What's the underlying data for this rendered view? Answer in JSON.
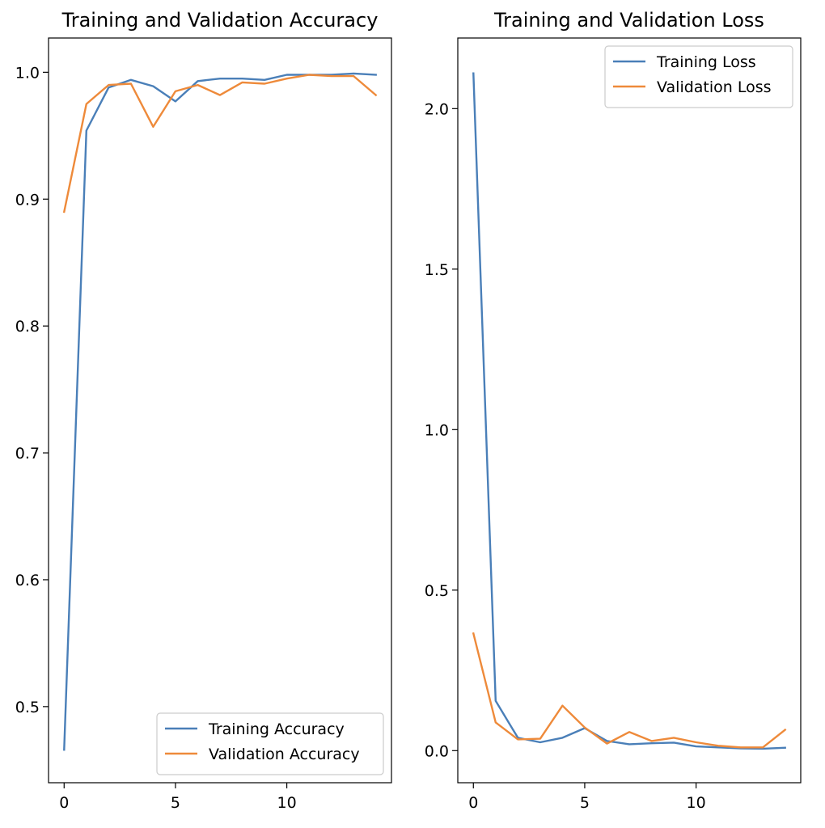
{
  "chart_data": [
    {
      "type": "line",
      "title": "Training and Validation Accuracy",
      "xlabel": "",
      "ylabel": "",
      "x": [
        0,
        1,
        2,
        3,
        4,
        5,
        6,
        7,
        8,
        9,
        10,
        11,
        12,
        13,
        14
      ],
      "xlim": [
        -0.7,
        14.7
      ],
      "ylim": [
        0.44,
        1.027
      ],
      "xticks": [
        0,
        5,
        10
      ],
      "yticks": [
        0.5,
        0.6,
        0.7,
        0.8,
        0.9,
        1.0
      ],
      "ytick_labels": [
        "0.5",
        "0.6",
        "0.7",
        "0.8",
        "0.9",
        "1.0"
      ],
      "grid": false,
      "legend_position": "lower right",
      "series": [
        {
          "name": "Training Accuracy",
          "color": "#4a7fb8",
          "values": [
            0.466,
            0.954,
            0.988,
            0.994,
            0.989,
            0.977,
            0.993,
            0.995,
            0.995,
            0.994,
            0.998,
            0.998,
            0.998,
            0.999,
            0.998
          ]
        },
        {
          "name": "Validation Accuracy",
          "color": "#ee8a3a",
          "values": [
            0.89,
            0.975,
            0.99,
            0.991,
            0.957,
            0.985,
            0.99,
            0.982,
            0.992,
            0.991,
            0.995,
            0.998,
            0.997,
            0.997,
            0.982
          ]
        }
      ]
    },
    {
      "type": "line",
      "title": "Training and Validation Loss",
      "xlabel": "",
      "ylabel": "",
      "x": [
        0,
        1,
        2,
        3,
        4,
        5,
        6,
        7,
        8,
        9,
        10,
        11,
        12,
        13,
        14
      ],
      "xlim": [
        -0.7,
        14.7
      ],
      "ylim": [
        -0.1,
        2.22
      ],
      "xticks": [
        0,
        5,
        10
      ],
      "yticks": [
        0.0,
        0.5,
        1.0,
        1.5,
        2.0
      ],
      "ytick_labels": [
        "0.0",
        "0.5",
        "1.0",
        "1.5",
        "2.0"
      ],
      "grid": false,
      "legend_position": "upper right",
      "series": [
        {
          "name": "Training Loss",
          "color": "#4a7fb8",
          "values": [
            2.11,
            0.155,
            0.04,
            0.026,
            0.04,
            0.07,
            0.03,
            0.02,
            0.023,
            0.025,
            0.013,
            0.01,
            0.007,
            0.006,
            0.009
          ]
        },
        {
          "name": "Validation Loss",
          "color": "#ee8a3a",
          "values": [
            0.365,
            0.088,
            0.035,
            0.037,
            0.14,
            0.072,
            0.022,
            0.058,
            0.03,
            0.04,
            0.026,
            0.015,
            0.01,
            0.01,
            0.065
          ]
        }
      ]
    }
  ]
}
